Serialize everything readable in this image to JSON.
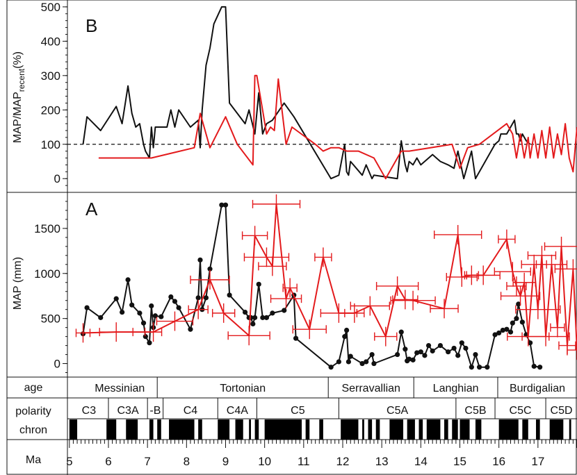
{
  "chart_data": [
    {
      "panel": "B",
      "type": "line",
      "ylabel": "MAP/MAP",
      "ylabel_sub": "recent",
      "ylabel_unit": "(%)",
      "ylim": [
        -40,
        520
      ],
      "yticks": [
        0,
        100,
        200,
        300,
        400,
        500
      ],
      "reference_line": 100,
      "series": [
        {
          "color": "#111111",
          "x": [
            5.35,
            5.45,
            5.8,
            6.2,
            6.35,
            6.5,
            6.6,
            6.7,
            6.8,
            6.9,
            6.95,
            7.05,
            7.1,
            7.15,
            7.2,
            7.5,
            7.6,
            7.7,
            7.8,
            8.1,
            8.3,
            8.35,
            8.4,
            8.5,
            8.6,
            8.7,
            8.9,
            9.0,
            9.1,
            9.5,
            9.6,
            9.75,
            9.85,
            9.95,
            10.05,
            10.2,
            10.5,
            10.75,
            11.7,
            11.9,
            12.05,
            12.1,
            12.15,
            12.2,
            12.5,
            12.6,
            12.75,
            12.8,
            13.4,
            13.5,
            13.6,
            13.65,
            13.7,
            13.8,
            13.9,
            14.0,
            14.1,
            14.3,
            14.5,
            14.7,
            14.85,
            14.95,
            15.1,
            15.3,
            15.4,
            15.9,
            16.0,
            16.05,
            16.2,
            16.3,
            16.4,
            16.45,
            16.5,
            16.55,
            16.6,
            16.7,
            16.8
          ],
          "y": [
            100,
            180,
            140,
            210,
            160,
            270,
            190,
            150,
            160,
            100,
            80,
            60,
            150,
            90,
            150,
            150,
            200,
            150,
            200,
            150,
            170,
            90,
            200,
            330,
            380,
            450,
            500,
            500,
            220,
            160,
            200,
            130,
            250,
            130,
            160,
            170,
            220,
            180,
            0,
            10,
            100,
            20,
            10,
            50,
            10,
            40,
            0,
            10,
            0,
            110,
            40,
            20,
            50,
            40,
            60,
            40,
            50,
            70,
            50,
            40,
            30,
            80,
            0,
            80,
            0,
            100,
            110,
            130,
            130,
            150,
            170,
            130,
            130,
            110,
            130,
            110,
            100
          ]
        },
        {
          "color": "#e31a1c",
          "x": [
            5.75,
            7.1,
            8.2,
            8.35,
            8.6,
            9.0,
            9.3,
            9.7,
            9.75,
            9.8,
            10.05,
            10.15,
            10.25,
            10.35,
            10.55,
            10.7,
            11.3,
            11.5,
            11.7,
            11.9,
            12.1,
            12.4,
            12.8,
            13.1,
            13.5,
            13.7,
            14.8,
            15.0,
            15.2,
            15.5,
            16.2,
            16.35,
            16.45,
            16.55,
            16.65,
            16.75,
            16.8,
            16.9,
            17.0,
            17.1,
            17.2,
            17.3,
            17.4,
            17.5,
            17.6,
            17.7,
            17.8,
            17.9,
            18.0
          ],
          "y": [
            60,
            60,
            90,
            190,
            90,
            180,
            100,
            40,
            300,
            300,
            130,
            150,
            140,
            290,
            100,
            150,
            100,
            80,
            90,
            90,
            80,
            80,
            60,
            0,
            80,
            80,
            100,
            30,
            90,
            100,
            160,
            130,
            60,
            130,
            60,
            120,
            60,
            130,
            60,
            140,
            60,
            150,
            60,
            130,
            70,
            160,
            60,
            20,
            150
          ]
        }
      ]
    },
    {
      "panel": "A",
      "type": "line",
      "ylabel": "MAP (mm)",
      "ylim": [
        -150,
        1900
      ],
      "yticks": [
        0,
        500,
        1000,
        1500
      ],
      "series": [
        {
          "color": "#111111",
          "x": [
            5.35,
            5.45,
            5.8,
            6.2,
            6.35,
            6.5,
            6.6,
            6.8,
            6.9,
            6.95,
            7.05,
            7.1,
            7.15,
            7.2,
            7.35,
            7.6,
            7.7,
            7.8,
            8.1,
            8.3,
            8.35,
            8.4,
            8.5,
            8.6,
            8.9,
            9.0,
            9.1,
            9.5,
            9.6,
            9.65,
            9.7,
            9.75,
            9.85,
            9.95,
            10.05,
            10.2,
            10.5,
            10.75,
            10.8,
            11.7,
            11.9,
            12.05,
            12.1,
            12.15,
            12.2,
            12.5,
            12.6,
            12.75,
            12.8,
            13.4,
            13.5,
            13.6,
            13.65,
            13.7,
            13.8,
            13.9,
            14.0,
            14.1,
            14.2,
            14.3,
            14.5,
            14.7,
            14.85,
            14.95,
            15.05,
            15.15,
            15.3,
            15.4,
            15.5,
            15.7,
            15.9,
            16.0,
            16.1,
            16.2,
            16.3,
            16.35,
            16.45,
            16.5,
            16.6,
            16.7,
            16.8,
            16.9,
            17.05
          ],
          "y": [
            330,
            620,
            510,
            720,
            570,
            930,
            650,
            560,
            450,
            300,
            230,
            640,
            400,
            530,
            520,
            740,
            690,
            620,
            380,
            730,
            1150,
            600,
            730,
            1050,
            1760,
            1760,
            760,
            570,
            510,
            510,
            440,
            510,
            880,
            510,
            510,
            560,
            590,
            760,
            280,
            -40,
            20,
            300,
            370,
            20,
            80,
            0,
            20,
            100,
            0,
            100,
            350,
            160,
            30,
            50,
            40,
            120,
            130,
            90,
            200,
            140,
            200,
            130,
            170,
            90,
            230,
            170,
            -40,
            100,
            -40,
            -40,
            320,
            340,
            370,
            380,
            350,
            450,
            500,
            660,
            460,
            320,
            230,
            -30,
            -40
          ]
        },
        {
          "color": "#e31a1c",
          "x": [
            5.35,
            6.2,
            7.15,
            7.7,
            8.3,
            8.6,
            8.95,
            9.6,
            9.75,
            10.05,
            10.2,
            10.3,
            10.55,
            10.65,
            11.15,
            11.5,
            11.9,
            12.3,
            12.7,
            13.1,
            13.4,
            13.6,
            13.8,
            14.6,
            14.95,
            15.05,
            15.3,
            15.6,
            16.2,
            16.35,
            16.45,
            16.55,
            16.65,
            16.75,
            16.9,
            17.0,
            17.1,
            17.2,
            17.35,
            17.5,
            17.6,
            17.75,
            17.9,
            18.0
          ],
          "y": [
            340,
            350,
            350,
            470,
            600,
            930,
            560,
            310,
            1420,
            1180,
            1080,
            1770,
            720,
            840,
            380,
            1180,
            560,
            560,
            640,
            300,
            860,
            710,
            700,
            610,
            1430,
            960,
            980,
            980,
            1380,
            1020,
            860,
            750,
            900,
            300,
            1100,
            600,
            1200,
            300,
            1100,
            400,
            1300,
            200,
            1050,
            150
          ]
        }
      ]
    }
  ],
  "panel_labels": {
    "b": "B",
    "a": "A"
  },
  "x_axis": {
    "label": "Ma",
    "xlim": [
      4.95,
      18.0
    ],
    "ticks": [
      "5",
      "6",
      "7",
      "8",
      "9",
      "10",
      "11",
      "12",
      "13",
      "14",
      "15",
      "16",
      "17"
    ]
  },
  "age_row": {
    "label": "age",
    "stages": [
      {
        "name": "Messinian",
        "start": 5.33,
        "end": 7.25
      },
      {
        "name": "Tortonian",
        "start": 7.25,
        "end": 11.63
      },
      {
        "name": "Serravallian",
        "start": 11.63,
        "end": 13.82
      },
      {
        "name": "Langhian",
        "start": 13.82,
        "end": 15.97
      },
      {
        "name": "Burdigalian",
        "start": 15.97,
        "end": 18.0
      }
    ]
  },
  "polarity_row": {
    "label1": "polarity",
    "label2": "chron",
    "chrons": [
      {
        "name": "C3",
        "start": 5.0,
        "end": 6.0
      },
      {
        "name": "C3A",
        "start": 6.0,
        "end": 7.0
      },
      {
        "name": "-B",
        "start": 7.0,
        "end": 7.4
      },
      {
        "name": "C4",
        "start": 7.4,
        "end": 8.8
      },
      {
        "name": "C4A",
        "start": 8.8,
        "end": 9.8
      },
      {
        "name": "C5",
        "start": 9.8,
        "end": 11.9
      },
      {
        "name": "C5A",
        "start": 11.9,
        "end": 14.9
      },
      {
        "name": "C5B",
        "start": 14.9,
        "end": 15.9
      },
      {
        "name": "C5C",
        "start": 15.9,
        "end": 17.2
      },
      {
        "name": "C5D",
        "start": 17.2,
        "end": 18.0
      }
    ],
    "normal_bands": [
      [
        5.0,
        5.2
      ],
      [
        5.95,
        6.2
      ],
      [
        6.45,
        6.75
      ],
      [
        7.05,
        7.15
      ],
      [
        7.25,
        7.35
      ],
      [
        7.55,
        8.2
      ],
      [
        8.3,
        8.4
      ],
      [
        8.8,
        9.1
      ],
      [
        9.25,
        9.45
      ],
      [
        9.6,
        9.65
      ],
      [
        9.75,
        9.85
      ],
      [
        10.0,
        10.95
      ],
      [
        11.05,
        11.15
      ],
      [
        11.4,
        11.5
      ],
      [
        11.95,
        12.4
      ],
      [
        12.5,
        12.55
      ],
      [
        12.65,
        12.75
      ],
      [
        12.85,
        12.95
      ],
      [
        13.2,
        13.55
      ],
      [
        13.65,
        13.85
      ],
      [
        13.95,
        14.05
      ],
      [
        14.15,
        14.5
      ],
      [
        14.6,
        14.7
      ],
      [
        14.8,
        14.95
      ],
      [
        15.0,
        15.25
      ],
      [
        15.4,
        15.55
      ],
      [
        16.0,
        16.5
      ],
      [
        16.6,
        16.75
      ],
      [
        16.95,
        17.05
      ],
      [
        17.3,
        17.65
      ],
      [
        17.8,
        17.85
      ]
    ]
  }
}
